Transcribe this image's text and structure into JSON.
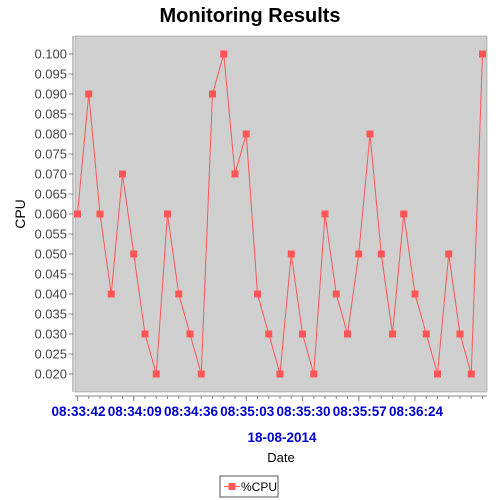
{
  "chart_data": {
    "type": "line",
    "title": "Monitoring Results",
    "xlabel": "Date",
    "date_label": "18-08-2014",
    "ylabel": "CPU",
    "ylim": [
      0.0155,
      0.1045
    ],
    "y_ticks": [
      "0.020",
      "0.025",
      "0.030",
      "0.035",
      "0.040",
      "0.045",
      "0.050",
      "0.055",
      "0.060",
      "0.065",
      "0.070",
      "0.075",
      "0.080",
      "0.085",
      "0.090",
      "0.095",
      "0.100"
    ],
    "x_ticks": [
      "08:33:42",
      "08:34:09",
      "08:34:36",
      "08:35:03",
      "08:35:30",
      "08:35:57",
      "08:36:24"
    ],
    "grid": true,
    "legend_position": "bottom",
    "series": [
      {
        "name": "%CPU",
        "color": "#ff5555",
        "values": [
          0.06,
          0.09,
          0.06,
          0.04,
          0.07,
          0.05,
          0.03,
          0.02,
          0.06,
          0.04,
          0.03,
          0.02,
          0.09,
          0.1,
          0.07,
          0.08,
          0.04,
          0.03,
          0.02,
          0.05,
          0.03,
          0.02,
          0.06,
          0.04,
          0.03,
          0.05,
          0.08,
          0.05,
          0.03,
          0.06,
          0.04,
          0.03,
          0.02,
          0.05,
          0.03,
          0.02,
          0.1
        ]
      }
    ]
  }
}
